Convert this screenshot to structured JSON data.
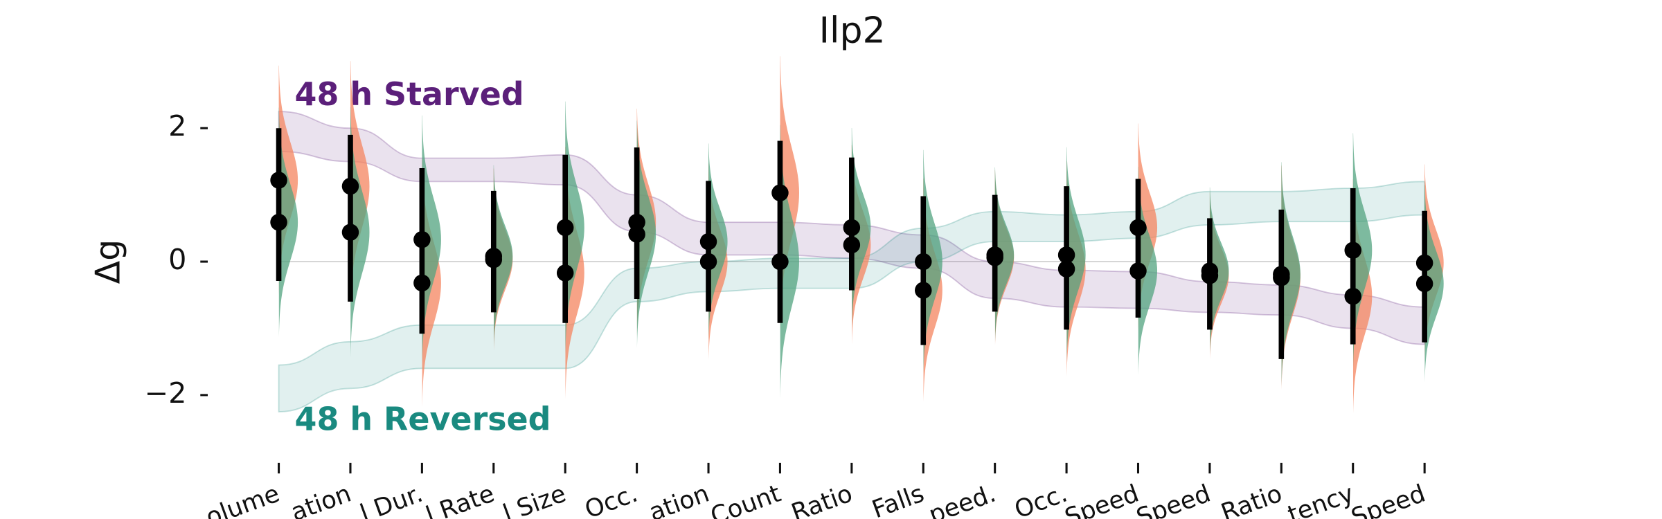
{
  "chart_data": {
    "type": "violin-dot",
    "title": "Ilp2",
    "ylabel": "Δg",
    "categories": [
      "olume",
      "ation",
      "l Dur.",
      "l Rate",
      "l Size",
      "Occ.",
      "ation",
      "Count",
      "Ratio",
      "Falls",
      "peed.",
      "Occ.",
      "Speed",
      "Speed",
      "Ratio",
      "tency",
      "Speed"
    ],
    "series": [
      {
        "color": "#f4845f",
        "values": [
          1.22,
          1.13,
          -0.32,
          0.03,
          -0.17,
          0.59,
          0,
          1.03,
          0.25,
          -0.43,
          0.06,
          -0.11,
          0.51,
          -0.21,
          -0.24,
          -0.52,
          -0.02
        ]
      },
      {
        "color": "#52a37f",
        "values": [
          0.59,
          0.44,
          0.33,
          0.08,
          0.51,
          0.41,
          0.3,
          0,
          0.51,
          0,
          0.1,
          0.1,
          -0.14,
          -0.14,
          -0.19,
          0.17,
          -0.33
        ]
      }
    ],
    "interval_low": [
      -0.29,
      -0.6,
      -1.08,
      -0.76,
      -0.92,
      -0.56,
      -0.75,
      -0.92,
      -0.43,
      -1.25,
      -0.75,
      -1.02,
      -0.84,
      -1.02,
      -1.46,
      -1.24,
      -1.21
    ],
    "interval_high": [
      2.0,
      1.9,
      1.4,
      1.06,
      1.6,
      1.71,
      1.21,
      1.81,
      1.56,
      0.98,
      1.0,
      1.13,
      1.24,
      0.65,
      0.78,
      1.1,
      0.76
    ],
    "bands": [
      {
        "name": "48 h Starved",
        "color": "#5b1f7a",
        "upper": [
          2.25,
          2.0,
          1.55,
          1.55,
          1.6,
          1.0,
          0.59,
          0.59,
          0.55,
          0.4,
          0.0,
          -0.13,
          -0.15,
          -0.3,
          -0.35,
          -0.5,
          -0.68
        ],
        "lower": [
          1.65,
          1.5,
          1.2,
          1.2,
          1.15,
          0.45,
          0.1,
          0.1,
          0.05,
          -0.1,
          -0.55,
          -0.68,
          -0.7,
          -0.76,
          -0.8,
          -1.0,
          -1.24
        ]
      },
      {
        "name": "48 h Reversed",
        "color": "#1a8a80",
        "upper": [
          -1.55,
          -1.2,
          -0.95,
          -0.95,
          -0.95,
          -0.1,
          0.0,
          0.05,
          0.05,
          0.5,
          0.75,
          0.7,
          0.75,
          1.05,
          1.05,
          1.1,
          1.2
        ],
        "lower": [
          -2.25,
          -1.9,
          -1.6,
          -1.6,
          -1.6,
          -0.6,
          -0.45,
          -0.4,
          -0.4,
          0.0,
          0.3,
          0.3,
          0.35,
          0.55,
          0.6,
          0.6,
          0.7
        ]
      }
    ],
    "ylim": [
      -3,
      2.6
    ],
    "yticks": [
      {
        "value": -2,
        "label": "−2"
      },
      0,
      2
    ],
    "refline": 0
  }
}
